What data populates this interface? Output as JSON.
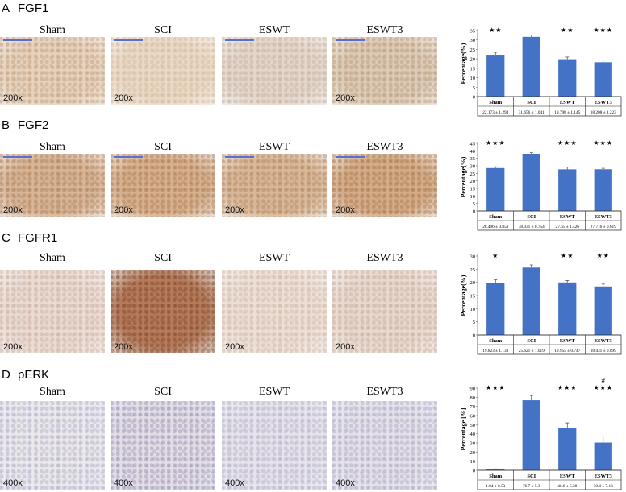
{
  "panels": [
    {
      "letter": "A",
      "title": "FGF1",
      "magnification": "200x",
      "groups": [
        "Sham",
        "SCI",
        "ESWT",
        "ESWT3"
      ],
      "colors": [
        "#e5d2bf",
        "#ead9c6",
        "#e4d6cb",
        "#dccbb8"
      ],
      "grain": [
        "#b78a63",
        "#c9ab8c",
        "#b9a28d",
        "#ad855f"
      ]
    },
    {
      "letter": "B",
      "title": "FGF2",
      "magnification": "200x",
      "groups": [
        "Sham",
        "SCI",
        "ESWT",
        "ESWT3"
      ],
      "colors": [
        "#d7b596",
        "#d6b18f",
        "#d9b899",
        "#d3ad89"
      ],
      "grain": [
        "#a06b42",
        "#9d653a",
        "#a47147",
        "#9a6136"
      ]
    },
    {
      "letter": "C",
      "title": "FGFR1",
      "magnification": "200x",
      "groups": [
        "Sham",
        "SCI",
        "ESWT",
        "ESWT3"
      ],
      "colors": [
        "#eadbd3",
        "#b57b5c",
        "#ecdfd6",
        "#e8d9cf"
      ],
      "grain": [
        "#bf9c8b",
        "#6e3618",
        "#c6a693",
        "#bd9a88"
      ]
    },
    {
      "letter": "D",
      "title": "pERK",
      "magnification": "400x",
      "groups": [
        "Sham",
        "SCI",
        "ESWT",
        "ESWT3"
      ],
      "colors": [
        "#ebe9ec",
        "#e3dde4",
        "#e6e3ea",
        "#e4e1e9"
      ],
      "grain": [
        "#9a96b8",
        "#7f78a8",
        "#9d99bb",
        "#9591b5"
      ]
    }
  ],
  "chart_data": [
    {
      "type": "bar",
      "categories": [
        "Sham",
        "SCI",
        "ESWT",
        "ESWT3"
      ],
      "values": [
        22.173,
        31.656,
        19.798,
        18.208
      ],
      "errors": [
        1.294,
        1.041,
        1.145,
        1.223
      ],
      "table": [
        "22.173 ± 1.294",
        "31.656 ± 1.041",
        "19.798 ± 1.145",
        "18.208 ± 1.223"
      ],
      "markers": [
        "★★",
        "",
        "★★",
        "★★★"
      ],
      "ylabel": "Percentage(%)",
      "ylim": [
        0,
        35
      ],
      "yticks": [
        0,
        5,
        10,
        15,
        20,
        25,
        30,
        35
      ],
      "bar_color": "#4472c4"
    },
    {
      "type": "bar",
      "categories": [
        "Sham",
        "SCI",
        "ESWT",
        "ESWT3"
      ],
      "values": [
        28.496,
        38.031,
        27.65,
        27.716
      ],
      "errors": [
        0.853,
        0.754,
        1.426,
        0.619
      ],
      "table": [
        "28.496 ± 0.853",
        "38.031 ± 0.754",
        "27.65 ± 1.426",
        "27.716 ± 0.619"
      ],
      "markers": [
        "★★★",
        "",
        "★★★",
        "★★★"
      ],
      "ylabel": "Percentage(%)",
      "ylim": [
        0,
        45
      ],
      "yticks": [
        0,
        5,
        10,
        15,
        20,
        25,
        30,
        35,
        40,
        45
      ],
      "bar_color": "#4472c4"
    },
    {
      "type": "bar",
      "categories": [
        "Sham",
        "SCI",
        "ESWT",
        "ESWT3"
      ],
      "values": [
        19.823,
        25.621,
        19.955,
        18.431
      ],
      "errors": [
        1.133,
        1.019,
        0.747,
        0.899
      ],
      "table": [
        "19.823 ± 1.133",
        "25.621 ± 1.019",
        "19.955 ± 0.747",
        "18.431 ± 0.899"
      ],
      "markers": [
        "★",
        "",
        "★★",
        "★★"
      ],
      "ylabel": "Percentage(%)",
      "ylim": [
        0,
        30
      ],
      "yticks": [
        0,
        5,
        10,
        15,
        20,
        25,
        30
      ],
      "bar_color": "#4472c4"
    },
    {
      "type": "bar",
      "categories": [
        "Sham",
        "SCI",
        "ESWT",
        "ESWT3"
      ],
      "values": [
        1.04,
        76.7,
        46.6,
        30.4
      ],
      "errors": [
        0.53,
        5.3,
        5.38,
        7.13
      ],
      "table": [
        "1.04 ± 0.53",
        "76.7 ± 5.3",
        "46.6 ± 5.38",
        "30.4 ± 7.13"
      ],
      "markers": [
        "★★★",
        "",
        "★★★",
        "★★★"
      ],
      "extra_markers": [
        "",
        "",
        "",
        "#"
      ],
      "ylabel": "Percentage [%]",
      "ylim": [
        0,
        90
      ],
      "yticks": [
        0,
        10,
        20,
        30,
        40,
        50,
        60,
        70,
        80,
        90
      ],
      "bar_color": "#4472c4"
    }
  ]
}
